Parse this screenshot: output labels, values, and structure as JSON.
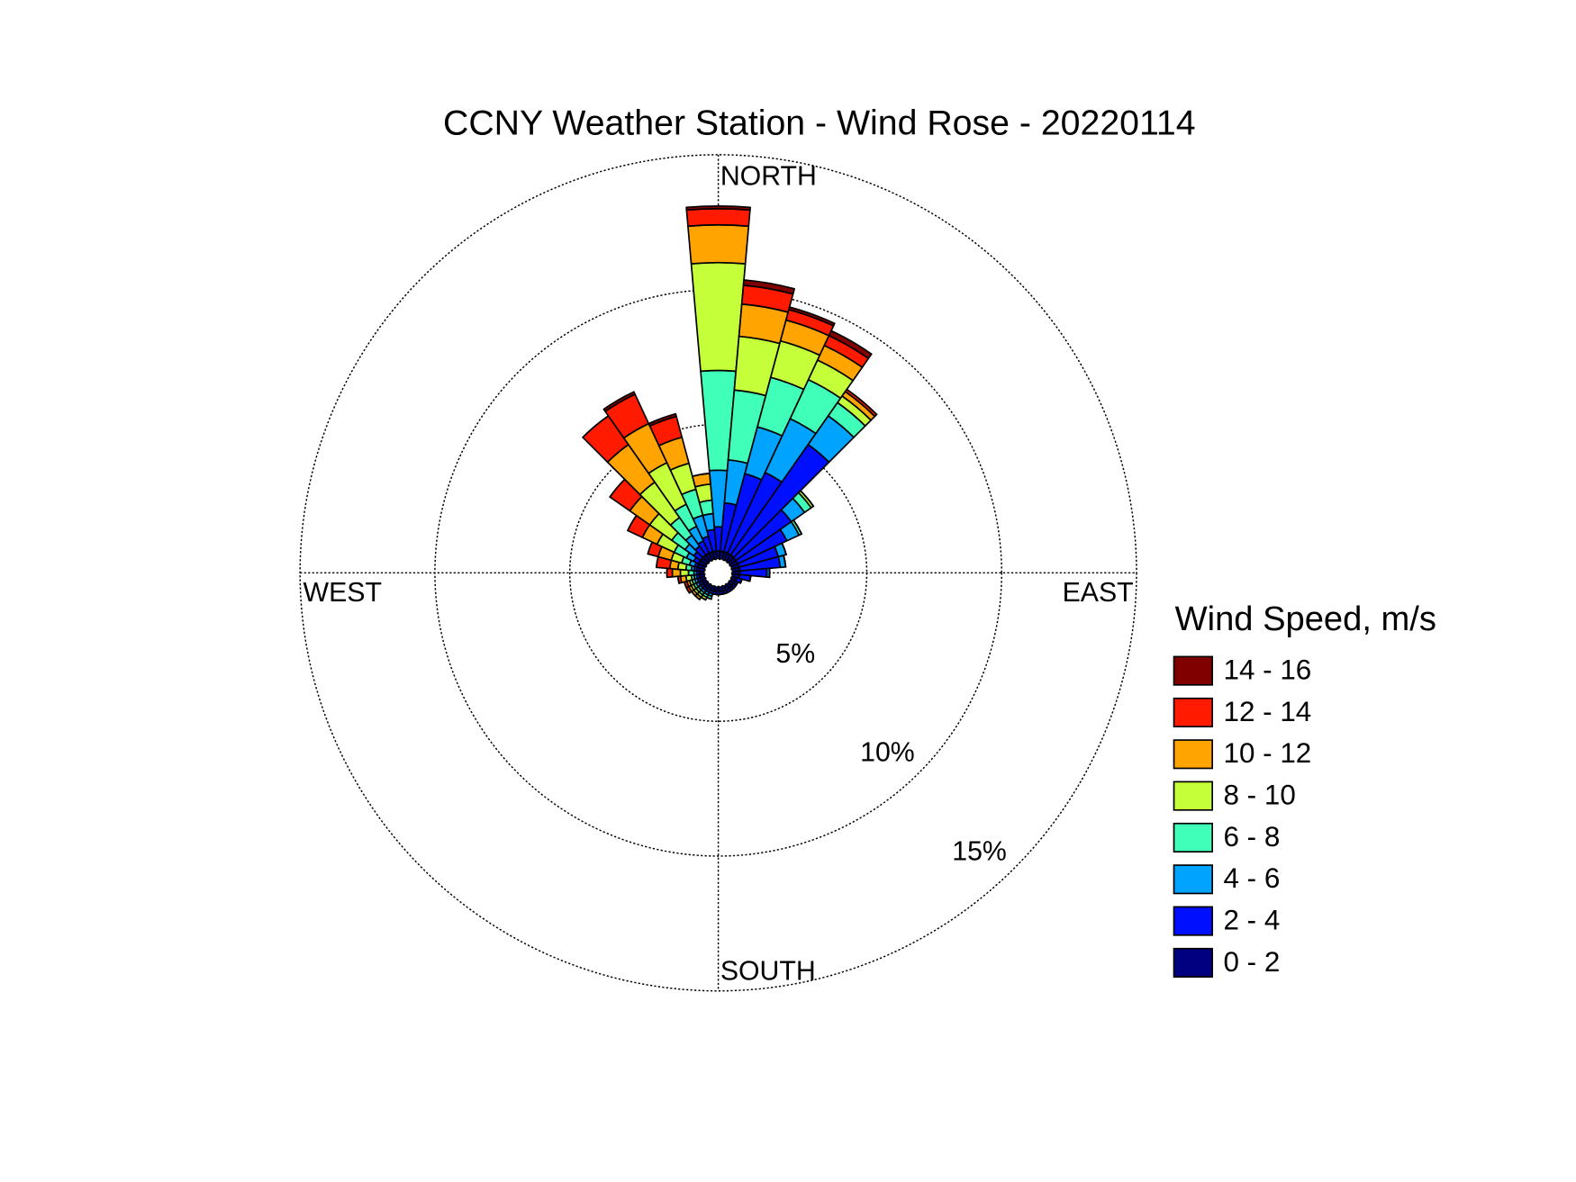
{
  "chart_data": {
    "type": "windrose",
    "title": "CCNY Weather Station - Wind Rose - 20220114",
    "compass": {
      "north": "NORTH",
      "east": "EAST",
      "south": "SOUTH",
      "west": "WEST"
    },
    "legend_title": "Wind Speed, m/s",
    "x": [
      0,
      10,
      20,
      30,
      40,
      50,
      60,
      70,
      80,
      90,
      100,
      110,
      120,
      130,
      140,
      150,
      160,
      170,
      180,
      190,
      200,
      210,
      220,
      230,
      240,
      250,
      260,
      270,
      280,
      290,
      300,
      310,
      320,
      330,
      340,
      350
    ],
    "rlim": [
      0,
      15
    ],
    "rticks": [
      {
        "value": 5,
        "label": "5%"
      },
      {
        "value": 10,
        "label": "10%"
      },
      {
        "value": 15,
        "label": "15%"
      }
    ],
    "grid": true,
    "series": [
      {
        "name": "0 - 2",
        "color": "#000080",
        "values": [
          0.3,
          0.3,
          0.3,
          0.3,
          0.3,
          0.3,
          0.3,
          0.3,
          0.3,
          0.3,
          0.3,
          0.2,
          0.2,
          0.2,
          0.2,
          0.2,
          0.2,
          0.2,
          0.2,
          0.2,
          0.2,
          0.2,
          0.2,
          0.2,
          0.2,
          0.2,
          0.2,
          0.2,
          0.3,
          0.3,
          0.3,
          0.3,
          0.3,
          0.3,
          0.3,
          0.3
        ]
      },
      {
        "name": "2 - 4",
        "color": "#0010ff",
        "values": [
          0.9,
          1.8,
          3.0,
          3.3,
          5.0,
          2.5,
          2.0,
          1.5,
          1.5,
          1.0,
          0.4,
          0.2,
          0.1,
          0.1,
          0.1,
          0.1,
          0.1,
          0.1,
          0.1,
          0.1,
          0.1,
          0.1,
          0.1,
          0.1,
          0.1,
          0.1,
          0.1,
          0.1,
          0.1,
          0.1,
          0.2,
          0.3,
          0.4,
          0.5,
          0.6,
          0.8
        ]
      },
      {
        "name": "4 - 6",
        "color": "#00a4ff",
        "values": [
          2.1,
          1.6,
          1.8,
          2.2,
          1.3,
          0.6,
          0.5,
          0.3,
          0.2,
          0.1,
          0,
          0,
          0,
          0,
          0,
          0,
          0,
          0,
          0,
          0,
          0.1,
          0.1,
          0.1,
          0.1,
          0.1,
          0.1,
          0.1,
          0.1,
          0.1,
          0.2,
          0.3,
          0.4,
          0.5,
          0.6,
          0.8,
          0.6
        ]
      },
      {
        "name": "6 - 8",
        "color": "#40ffb8",
        "values": [
          3.7,
          2.6,
          1.9,
          1.6,
          0.6,
          0.3,
          0.1,
          0,
          0,
          0,
          0,
          0,
          0,
          0,
          0,
          0,
          0,
          0,
          0,
          0,
          0.1,
          0.1,
          0.1,
          0.1,
          0.1,
          0.1,
          0.1,
          0.2,
          0.2,
          0.3,
          0.5,
          0.6,
          0.8,
          0.9,
          1.0,
          0.5
        ]
      },
      {
        "name": "8 - 10",
        "color": "#c4ff3a",
        "values": [
          4.0,
          2.0,
          1.4,
          0.8,
          0.3,
          0.1,
          0,
          0,
          0,
          0,
          0,
          0,
          0,
          0,
          0,
          0,
          0,
          0,
          0,
          0,
          0,
          0.1,
          0.1,
          0.1,
          0.1,
          0.1,
          0.2,
          0.3,
          0.3,
          0.4,
          0.7,
          1.0,
          1.6,
          1.7,
          1.0,
          0.6
        ]
      },
      {
        "name": "10 - 12",
        "color": "#ffa400",
        "values": [
          1.4,
          1.2,
          0.8,
          0.6,
          0.2,
          0,
          0,
          0,
          0,
          0,
          0,
          0,
          0,
          0,
          0,
          0,
          0,
          0,
          0,
          0,
          0,
          0,
          0.1,
          0.1,
          0.1,
          0.1,
          0.2,
          0.3,
          0.3,
          0.5,
          0.6,
          0.9,
          1.7,
          1.6,
          1.0,
          0.4
        ]
      },
      {
        "name": "12 - 14",
        "color": "#ff1a00",
        "values": [
          0.6,
          0.7,
          0.4,
          0.4,
          0.1,
          0,
          0,
          0,
          0,
          0,
          0,
          0,
          0,
          0,
          0,
          0,
          0,
          0,
          0,
          0,
          0,
          0,
          0,
          0,
          0.1,
          0.1,
          0.1,
          0.2,
          0.5,
          0.4,
          0.6,
          0.9,
          1.3,
          1.2,
          0.8,
          0
        ]
      },
      {
        "name": "14 - 16",
        "color": "#800000",
        "values": [
          0.1,
          0.2,
          0.1,
          0.2,
          0,
          0,
          0,
          0,
          0,
          0,
          0,
          0,
          0,
          0,
          0,
          0,
          0,
          0,
          0,
          0,
          0,
          0,
          0,
          0,
          0,
          0,
          0,
          0,
          0,
          0,
          0,
          0,
          0,
          0.1,
          0.1,
          0
        ]
      }
    ]
  }
}
